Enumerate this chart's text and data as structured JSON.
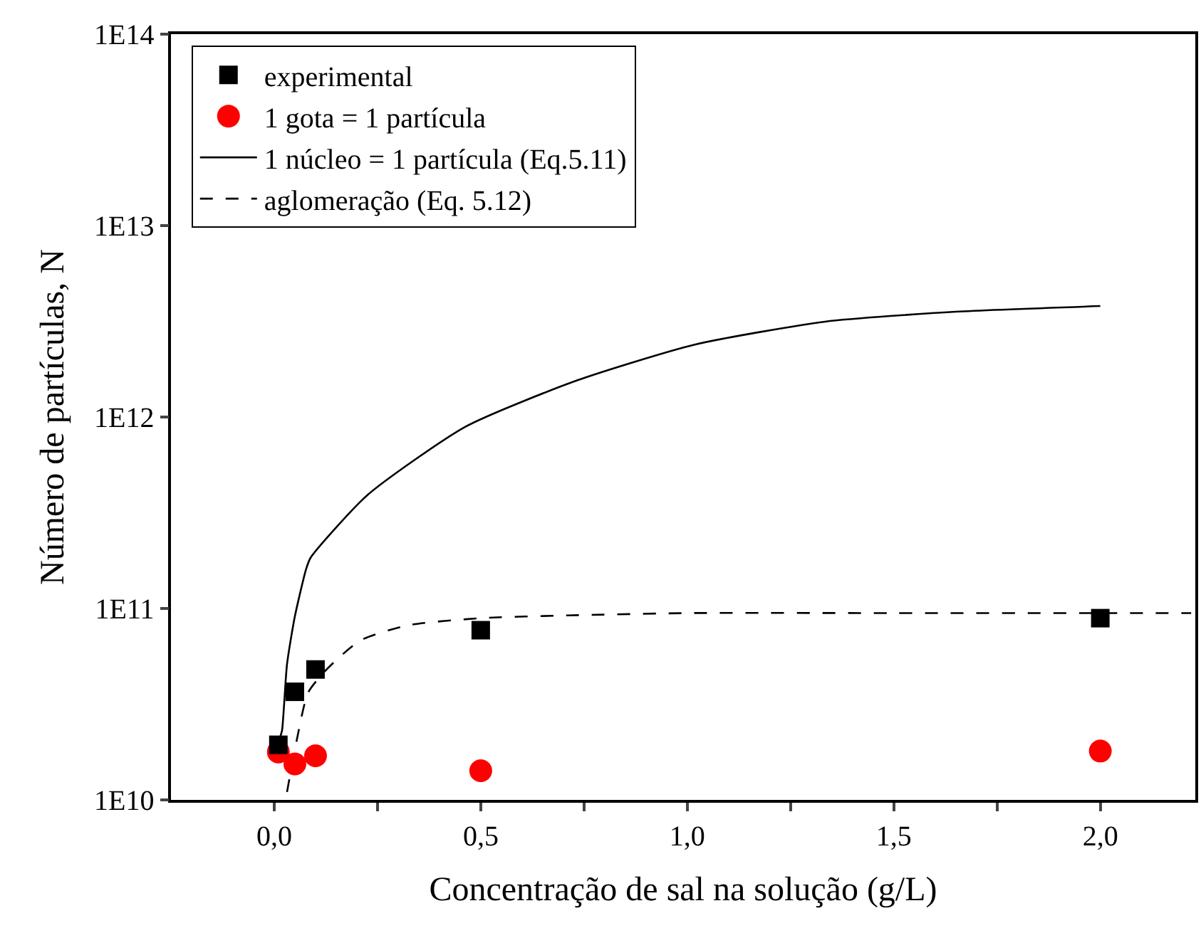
{
  "chart_data": {
    "type": "scatter",
    "xlabel": "Concentração de sal na solução (g/L)",
    "ylabel": "Número de partículas, N",
    "log": "y",
    "grid": false,
    "legend": "top left",
    "xlim": [
      -0.25,
      2.23
    ],
    "xticks": [
      {
        "value": 0,
        "label": "0,0"
      },
      {
        "value": 0.25,
        "label": null
      },
      {
        "value": 0.5,
        "label": "0,5"
      },
      {
        "value": 0.75,
        "label": null
      },
      {
        "value": 1,
        "label": "1,0"
      },
      {
        "value": 1.25,
        "label": null
      },
      {
        "value": 1.5,
        "label": "1,5"
      },
      {
        "value": 1.75,
        "label": null
      },
      {
        "value": 2,
        "label": "2,0"
      }
    ],
    "ylim": [
      10000000000.0,
      100000000000000.0
    ],
    "yticks": [
      {
        "value": 10000000000.0,
        "label": "1E10"
      },
      {
        "value": 100000000000.0,
        "label": "1E11"
      },
      {
        "value": 1000000000000.0,
        "label": "1E12"
      },
      {
        "value": 10000000000000.0,
        "label": "1E13"
      },
      {
        "value": 100000000000000.0,
        "label": "1E14"
      }
    ],
    "series": [
      {
        "name": "experimental",
        "type": "scatter",
        "marker": "square",
        "color": "#000000",
        "x": [
          0.01,
          0.05,
          0.1,
          0.5,
          2.0
        ],
        "values": [
          19400000000.0,
          36700000000.0,
          48000000000.0,
          77000000000.0,
          89000000000.0
        ]
      },
      {
        "name": "1 gota = 1 partícula",
        "type": "scatter",
        "marker": "circle",
        "color": "#ff0000",
        "x": [
          0.01,
          0.05,
          0.1,
          0.5,
          2.0
        ],
        "values": [
          17800000000.0,
          15400000000.0,
          17000000000.0,
          14200000000.0,
          18000000000.0
        ]
      },
      {
        "name": "1 núcleo = 1 partícula (Eq.5.11)",
        "type": "line",
        "line_style": "solid",
        "marker": "none",
        "color": "#000000",
        "x": [
          0.014,
          0.019,
          0.031,
          0.05,
          0.077,
          0.088,
          0.225,
          0.463,
          0.732,
          1.018,
          1.334,
          1.65,
          2.0
        ],
        "values": [
          21200000000.0,
          23100000000.0,
          51200000000.0,
          91000000000.0,
          160000000000.0,
          184000000000.0,
          390000000000.0,
          890000000000.0,
          1550000000000.0,
          2390000000000.0,
          3150000000000.0,
          3550000000000.0,
          3800000000000.0
        ]
      },
      {
        "name": "aglomeração (Eq. 5.12)",
        "type": "line",
        "line_style": "dashed",
        "marker": "none",
        "color": "#000000",
        "x": [
          0.031,
          0.05,
          0.082,
          0.128,
          0.208,
          0.323,
          0.5,
          0.712,
          1.0,
          1.5,
          2.0,
          2.22
        ],
        "values": [
          11000000000.0,
          18300000000.0,
          36300000000.0,
          48300000000.0,
          68000000000.0,
          81700000000.0,
          89000000000.0,
          92000000000.0,
          94600000000.0,
          94600000000.0,
          94600000000.0,
          94600000000.0
        ]
      }
    ]
  }
}
